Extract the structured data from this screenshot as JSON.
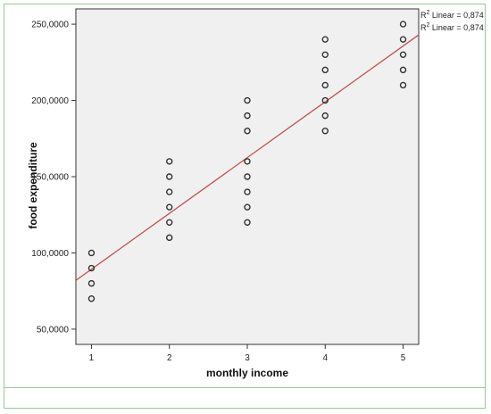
{
  "chart_data": {
    "type": "scatter",
    "title": "",
    "xlabel": "monthly income",
    "ylabel": "food expenditure",
    "xlim": [
      0.8,
      5.2
    ],
    "ylim": [
      40000,
      260000
    ],
    "x_ticks": [
      1,
      2,
      3,
      4,
      5
    ],
    "x_tick_labels": [
      "1",
      "2",
      "3",
      "4",
      "5"
    ],
    "y_ticks": [
      50000,
      100000,
      150000,
      200000,
      250000
    ],
    "y_tick_labels": [
      "50,0000",
      "100,0000",
      "150,0000",
      "200,0000",
      "250,0000"
    ],
    "grid": false,
    "legend_position": "top-right",
    "legend": [
      {
        "prefix": "R",
        "sup": "2",
        "text": " Linear = 0,874"
      },
      {
        "prefix": "R",
        "sup": "2",
        "text": " Linear = 0,874"
      }
    ],
    "points": [
      {
        "x": 1,
        "y": 100000
      },
      {
        "x": 1,
        "y": 90000
      },
      {
        "x": 1,
        "y": 80000
      },
      {
        "x": 1,
        "y": 70000
      },
      {
        "x": 2,
        "y": 160000
      },
      {
        "x": 2,
        "y": 150000
      },
      {
        "x": 2,
        "y": 140000
      },
      {
        "x": 2,
        "y": 130000
      },
      {
        "x": 2,
        "y": 120000
      },
      {
        "x": 2,
        "y": 110000
      },
      {
        "x": 3,
        "y": 200000
      },
      {
        "x": 3,
        "y": 190000
      },
      {
        "x": 3,
        "y": 180000
      },
      {
        "x": 3,
        "y": 160000
      },
      {
        "x": 3,
        "y": 150000
      },
      {
        "x": 3,
        "y": 140000
      },
      {
        "x": 3,
        "y": 130000
      },
      {
        "x": 3,
        "y": 120000
      },
      {
        "x": 4,
        "y": 240000
      },
      {
        "x": 4,
        "y": 230000
      },
      {
        "x": 4,
        "y": 220000
      },
      {
        "x": 4,
        "y": 210000
      },
      {
        "x": 4,
        "y": 200000
      },
      {
        "x": 4,
        "y": 190000
      },
      {
        "x": 4,
        "y": 180000
      },
      {
        "x": 5,
        "y": 250000
      },
      {
        "x": 5,
        "y": 240000
      },
      {
        "x": 5,
        "y": 230000
      },
      {
        "x": 5,
        "y": 220000
      },
      {
        "x": 5,
        "y": 210000
      }
    ],
    "fit_line": {
      "type": "linear",
      "r_squared": 0.874,
      "x": [
        0.8,
        5.2
      ],
      "y": [
        82000,
        243000
      ]
    },
    "colors": {
      "plot_background": "#f0f0f0",
      "marker": "#333333",
      "fit_line": "#c0504d",
      "frame": "#8fce8f"
    }
  }
}
